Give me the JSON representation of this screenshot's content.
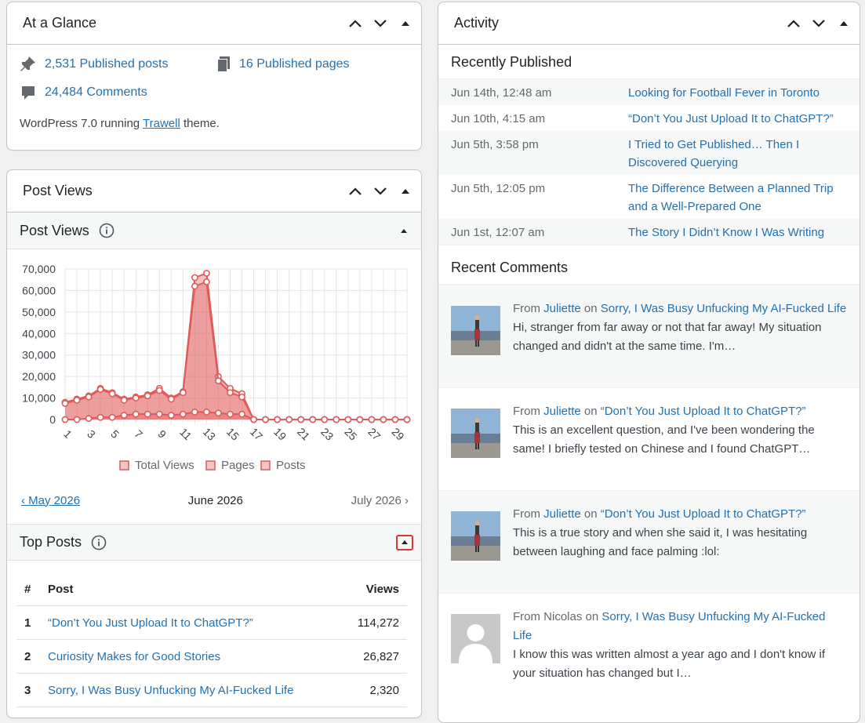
{
  "glance": {
    "title": "At a Glance",
    "posts": "2,531 Published posts",
    "pages": "16 Published pages",
    "comments": "24,484 Comments",
    "wp_prefix": "WordPress 7.0 running ",
    "theme": "Trawell",
    "wp_suffix": " theme."
  },
  "postviews": {
    "title": "Post Views",
    "sub_title": "Post Views",
    "prev_month": "‹ May 2026",
    "cur_month": "June 2026",
    "next_month": "July 2026 ›",
    "top_title": "Top Posts",
    "table_headers": [
      "#",
      "Post",
      "Views"
    ],
    "top_posts": [
      {
        "rank": "1",
        "title": "“Don’t You Just Upload It to ChatGPT?”",
        "views": "114,272"
      },
      {
        "rank": "2",
        "title": "Curiosity Makes for Good Stories",
        "views": "26,827"
      },
      {
        "rank": "3",
        "title": "Sorry, I Was Busy Unfucking My AI-Fucked Life",
        "views": "2,320"
      }
    ]
  },
  "chart_data": {
    "type": "area",
    "x": [
      1,
      2,
      3,
      4,
      5,
      6,
      7,
      8,
      9,
      10,
      11,
      12,
      13,
      14,
      15,
      16,
      17,
      18,
      19,
      20,
      21,
      22,
      23,
      24,
      25,
      26,
      27,
      28,
      29,
      30
    ],
    "x_tick_labels": [
      "1",
      "3",
      "5",
      "7",
      "9",
      "11",
      "13",
      "15",
      "17",
      "19",
      "21",
      "23",
      "25",
      "27",
      "29"
    ],
    "y_tick_labels": [
      "70,000",
      "60,000",
      "50,000",
      "40,000",
      "30,000",
      "20,000",
      "10,000",
      "0"
    ],
    "ylim": [
      0,
      70000
    ],
    "grid": true,
    "legend_position": "bottom",
    "series": [
      {
        "name": "Total Views",
        "values": [
          8000,
          9500,
          11000,
          14500,
          12500,
          9500,
          10500,
          11500,
          14500,
          10000,
          13000,
          66000,
          68000,
          20000,
          14500,
          12000,
          0,
          0,
          0,
          0,
          0,
          0,
          0,
          0,
          0,
          0,
          0,
          0,
          0,
          0
        ]
      },
      {
        "name": "Pages",
        "values": [
          7500,
          9000,
          10500,
          14000,
          12000,
          9000,
          10000,
          11000,
          13500,
          9500,
          12500,
          62000,
          64000,
          18000,
          12500,
          10500,
          0,
          0,
          0,
          0,
          0,
          0,
          0,
          0,
          0,
          0,
          0,
          0,
          0,
          0
        ]
      },
      {
        "name": "Posts",
        "values": [
          0,
          0,
          500,
          1000,
          1000,
          2000,
          2500,
          2500,
          2500,
          2000,
          2500,
          3500,
          3500,
          3000,
          2500,
          2500,
          0,
          0,
          0,
          0,
          0,
          0,
          0,
          0,
          0,
          0,
          0,
          0,
          0,
          0
        ]
      }
    ],
    "colors": {
      "line": "#e05a5a",
      "fill": "rgba(224,90,90,0.35)"
    }
  },
  "activity": {
    "title": "Activity",
    "recent_published_title": "Recently Published",
    "published": [
      {
        "date": "Jun 14th, 12:48 am",
        "title": "Looking for Football Fever in Toronto"
      },
      {
        "date": "Jun 10th, 4:15 am",
        "title": "“Don’t You Just Upload It to ChatGPT?”"
      },
      {
        "date": "Jun 5th, 3:58 pm",
        "title": "I Tried to Get Published… Then I Discovered Querying"
      },
      {
        "date": "Jun 5th, 12:05 pm",
        "title": "The Difference Between a Planned Trip and a Well-Prepared One"
      },
      {
        "date": "Jun 1st, 12:07 am",
        "title": "The Story I Didn’t Know I Was Writing"
      }
    ],
    "recent_comments_title": "Recent Comments",
    "comments": [
      {
        "from": "From ",
        "author": "Juliette",
        "on": " on ",
        "post": "Sorry, I Was Busy Unfucking My AI-Fucked Life",
        "text": "Hi, stranger from far away or not that far away! My situation changed and didn't at the same time. I'm…",
        "avatar": "photo"
      },
      {
        "from": "From ",
        "author": "Juliette",
        "on": " on ",
        "post": "“Don’t You Just Upload It to ChatGPT?”",
        "text": "This is an excellent question, and I've been wondering the same! I briefly tested on Chinese and I found ChatGPT…",
        "avatar": "photo"
      },
      {
        "from": "From ",
        "author": "Juliette",
        "on": " on ",
        "post": "“Don’t You Just Upload It to ChatGPT?”",
        "text": "This is a true story and when she said it, I was hesitating between laughing and face palming :lol:",
        "avatar": "photo"
      },
      {
        "from": "From ",
        "author": "Nicolas",
        "on": " on ",
        "post": "Sorry, I Was Busy Unfucking My AI-Fucked Life",
        "text": "I know this was written almost a year ago and I don't know if your situation has changed but I…",
        "avatar": "default"
      }
    ]
  }
}
